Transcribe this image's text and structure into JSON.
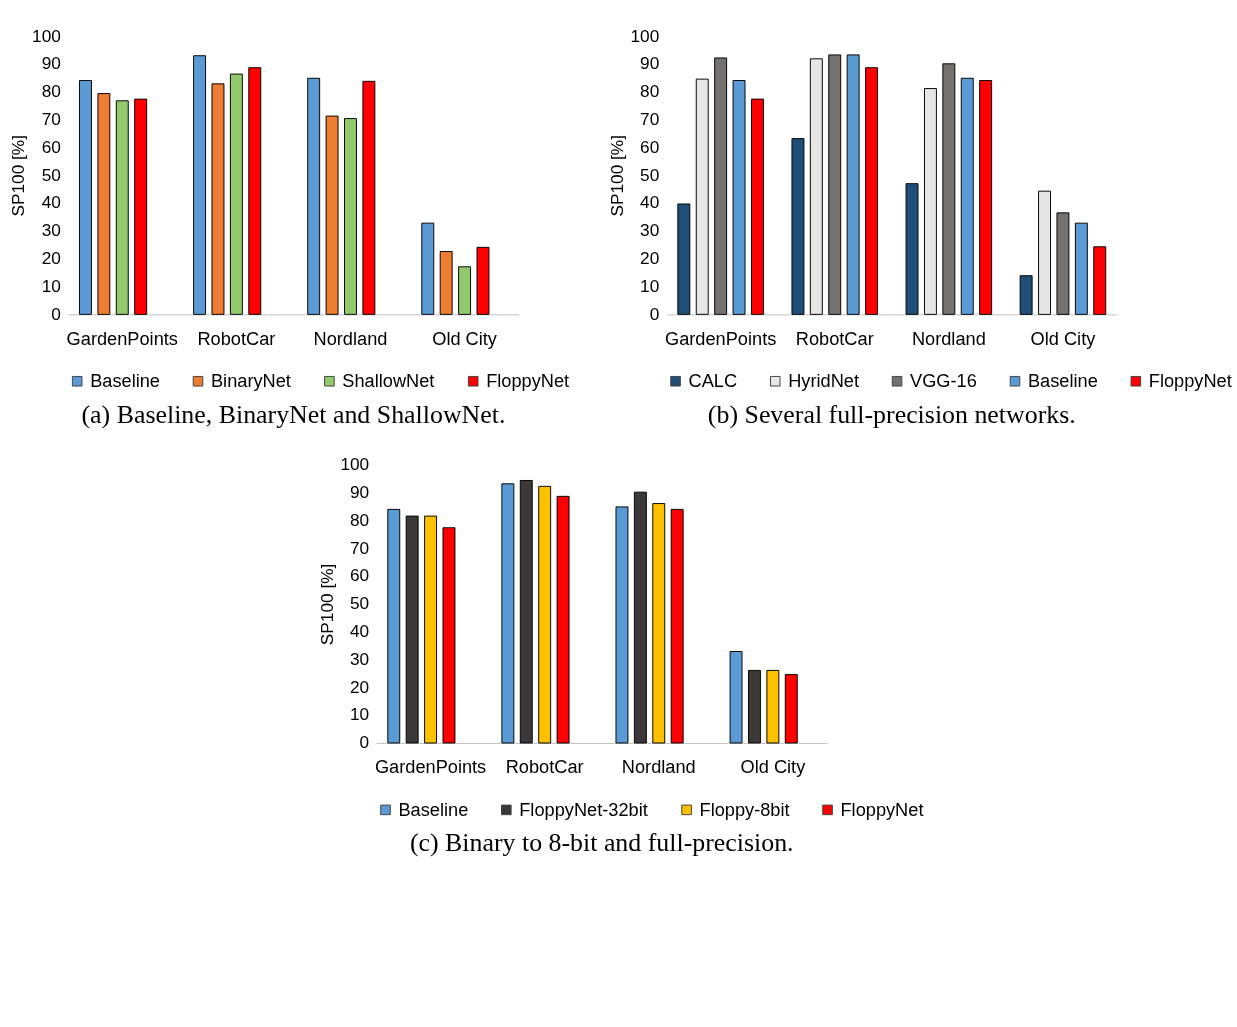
{
  "chart_data": [
    {
      "type": "bar",
      "title": "(a) Baseline, BinaryNet and ShallowNet.",
      "ylabel": "SP100 [%]",
      "categories": [
        "GardenPoints",
        "RobotCar",
        "Nordland",
        "Old City"
      ],
      "ylim": [
        0,
        100
      ],
      "yticks": [
        0,
        10,
        20,
        30,
        40,
        50,
        60,
        70,
        80,
        90,
        100
      ],
      "grid": false,
      "legend": "bottom",
      "series": [
        {
          "name": "Baseline",
          "color": "#5b9bd5",
          "values": [
            84.1,
            93.0,
            84.9,
            32.8
          ]
        },
        {
          "name": "BinaryNet",
          "color": "#ed7d31",
          "values": [
            79.4,
            82.9,
            71.3,
            22.6
          ]
        },
        {
          "name": "ShallowNet",
          "color": "#92c96d",
          "values": [
            76.8,
            86.4,
            70.4,
            17.1
          ]
        },
        {
          "name": "FloppyNet",
          "color": "#ff0000",
          "values": [
            77.4,
            88.7,
            83.8,
            24.1
          ]
        }
      ]
    },
    {
      "type": "bar",
      "title": "(b) Several full-precision networks.",
      "ylabel": "SP100 [%]",
      "categories": [
        "GardenPoints",
        "RobotCar",
        "Nordland",
        "Old City"
      ],
      "ylim": [
        0,
        100
      ],
      "yticks": [
        0,
        10,
        20,
        30,
        40,
        50,
        60,
        70,
        80,
        90,
        100
      ],
      "grid": false,
      "legend": "bottom",
      "series": [
        {
          "name": "CALC",
          "color": "#1f4e79",
          "values": [
            39.7,
            63.2,
            47.0,
            13.9
          ]
        },
        {
          "name": "HyridNet",
          "color": "#e7e6e6",
          "values": [
            84.6,
            91.9,
            81.2,
            44.3
          ]
        },
        {
          "name": "VGG-16",
          "color": "#767171",
          "values": [
            92.2,
            93.3,
            90.1,
            36.5
          ]
        },
        {
          "name": "Baseline",
          "color": "#5b9bd5",
          "values": [
            84.1,
            93.3,
            84.9,
            32.8
          ]
        },
        {
          "name": "FloppyNet",
          "color": "#ff0000",
          "values": [
            77.4,
            88.7,
            84.1,
            24.3
          ]
        }
      ]
    },
    {
      "type": "bar",
      "title": "(c) Binary to 8-bit and full-precision.",
      "ylabel": "SP100 [%]",
      "categories": [
        "GardenPoints",
        "RobotCar",
        "Nordland",
        "Old City"
      ],
      "ylim": [
        0,
        100
      ],
      "yticks": [
        0,
        10,
        20,
        30,
        40,
        50,
        60,
        70,
        80,
        90,
        100
      ],
      "grid": false,
      "legend": "bottom",
      "series": [
        {
          "name": "Baseline",
          "color": "#5b9bd5",
          "values": [
            84.0,
            93.2,
            84.9,
            32.9
          ]
        },
        {
          "name": "FloppyNet-32bit",
          "color": "#3b3838",
          "values": [
            81.6,
            94.4,
            90.2,
            26.1
          ]
        },
        {
          "name": "Floppy-8bit",
          "color": "#ffc000",
          "values": [
            81.6,
            92.3,
            86.1,
            26.1
          ]
        },
        {
          "name": "FloppyNet",
          "color": "#ff0000",
          "values": [
            77.4,
            88.7,
            84.0,
            24.6
          ]
        }
      ]
    }
  ]
}
